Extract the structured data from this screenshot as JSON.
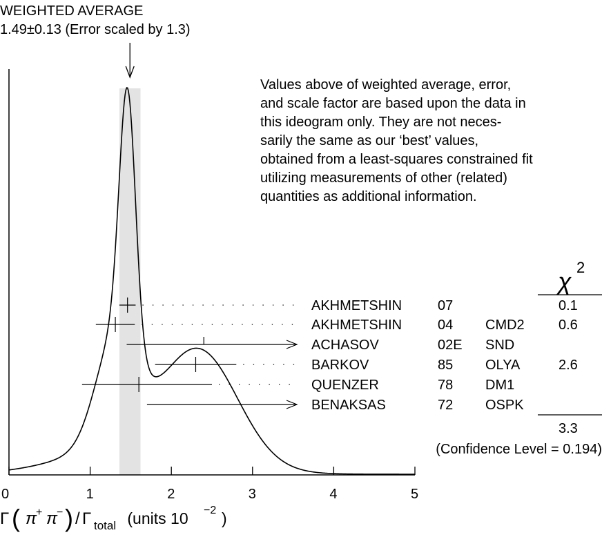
{
  "chart_data": {
    "type": "ideogram",
    "title_line1": "WEIGHTED AVERAGE",
    "title_line2": "1.49±0.13 (Error scaled by 1.3)",
    "weighted_average": 1.49,
    "weighted_error": 0.13,
    "scale_factor": 1.3,
    "note_lines": [
      "Values above of weighted average, error,",
      "and scale factor are based upon the data in",
      "this ideogram only.  They are not neces-",
      "sarily the same as our ‘best’ values,",
      "obtained from a least-squares constrained fit",
      "utilizing measurements of other (related)",
      "quantities as additional information."
    ],
    "x_axis": {
      "min": 0,
      "max": 5,
      "ticks": [
        "0",
        "1",
        "2",
        "3",
        "4",
        "5"
      ],
      "label_parts": {
        "gamma": "Γ",
        "lparen": "(",
        "pi": "π",
        "sup_plus": "+",
        "sup_minus": "−",
        "rparen": ")",
        "slash": "/",
        "gamma2": "Γ",
        "sub_total": "total",
        "units_text": " (units 10",
        "units_exp": "−2",
        "units_close": ")"
      }
    },
    "chi2_header": {
      "symbol": "χ",
      "exponent": "2"
    },
    "measurements": [
      {
        "author": "AKHMETSHIN",
        "year": "07",
        "experiment": "",
        "chi2": "0.1",
        "value": 1.46,
        "err_minus": 0.1,
        "err_plus": 0.1,
        "upper_limit": null
      },
      {
        "author": "AKHMETSHIN",
        "year": "04",
        "experiment": "CMD2",
        "chi2": "0.6",
        "value": 1.31,
        "err_minus": 0.24,
        "err_plus": 0.24,
        "upper_limit": null
      },
      {
        "author": "ACHASOV",
        "year": "02E",
        "experiment": "SND",
        "chi2": "",
        "value": 2.4,
        "err_minus": 0.95,
        "err_plus": null,
        "upper_limit": true
      },
      {
        "author": "BARKOV",
        "year": "85",
        "experiment": "OLYA",
        "chi2": "2.6",
        "value": 2.3,
        "err_minus": 0.5,
        "err_plus": 0.5,
        "upper_limit": null
      },
      {
        "author": "QUENZER",
        "year": "78",
        "experiment": "DM1",
        "chi2": "",
        "value": 1.6,
        "err_minus": 0.7,
        "err_plus": 0.9,
        "upper_limit": null
      },
      {
        "author": "BENAKSAS",
        "year": "72",
        "experiment": "OSPK",
        "chi2": "",
        "value": 1.7,
        "err_minus": 0,
        "err_plus": null,
        "upper_limit": true
      }
    ],
    "chi2_total": "3.3",
    "confidence_level": "(Confidence Level = 0.194)"
  }
}
